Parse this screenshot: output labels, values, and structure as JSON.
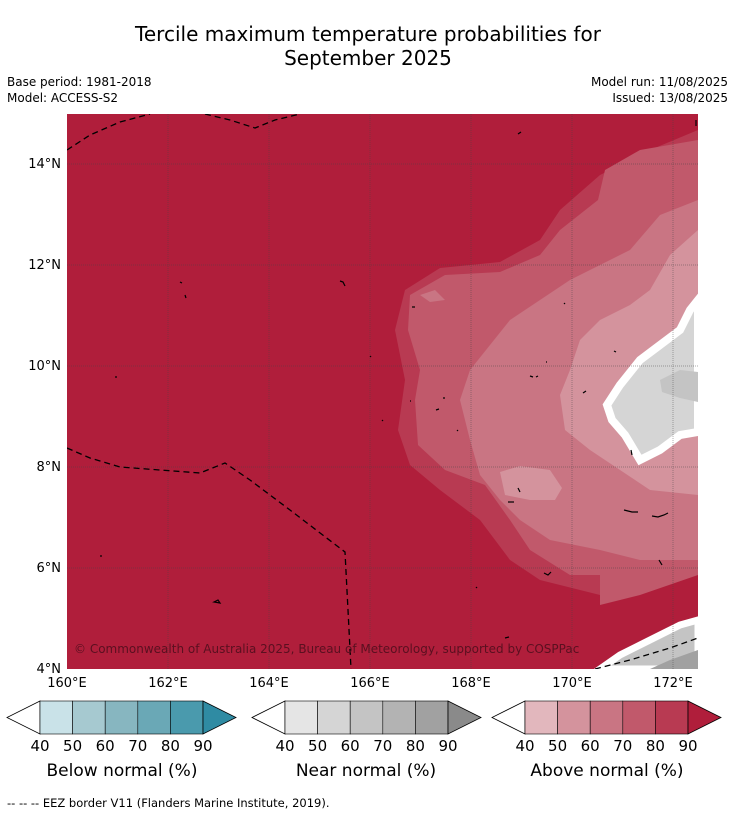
{
  "title": {
    "line1": "Tercile maximum temperature probabilities for",
    "line2": "September 2025"
  },
  "meta": {
    "base_period": "Base period: 1981-2018",
    "model": "Model: ACCESS-S2",
    "model_run": "Model run: 11/08/2025",
    "issued": "Issued: 13/08/2025"
  },
  "map": {
    "copyright": "© Commonwealth of Australia 2025, Bureau of Meteorology, supported by COSPPac",
    "lat_labels": [
      "14°N",
      "12°N",
      "10°N",
      "8°N",
      "6°N",
      "4°N"
    ],
    "lon_labels": [
      "160°E",
      "162°E",
      "164°E",
      "166°E",
      "168°E",
      "170°E",
      "172°E"
    ],
    "grid": true
  },
  "colorbars": [
    {
      "label": "Below normal (%)",
      "ticks": [
        "40",
        "50",
        "60",
        "70",
        "80",
        "90"
      ],
      "colors": [
        "#ffffff",
        "#c9e2e8",
        "#a6c9d0",
        "#87b6c0",
        "#6aa8b6",
        "#4a9aad",
        "#2f8ba3"
      ]
    },
    {
      "label": "Near normal (%)",
      "ticks": [
        "40",
        "50",
        "60",
        "70",
        "80",
        "90"
      ],
      "colors": [
        "#ffffff",
        "#e5e5e5",
        "#d5d5d5",
        "#c4c4c4",
        "#b3b3b3",
        "#a1a1a1",
        "#8a8a8a"
      ]
    },
    {
      "label": "Above normal (%)",
      "ticks": [
        "40",
        "50",
        "60",
        "70",
        "80",
        "90"
      ],
      "colors": [
        "#ffffff",
        "#e2b7bd",
        "#d4939d",
        "#c97583",
        "#c1596b",
        "#b83a52",
        "#b01e3b"
      ]
    }
  ],
  "footnote": "--  --  -- EEZ border V11 (Flanders Marine Institute, 2019)."
}
